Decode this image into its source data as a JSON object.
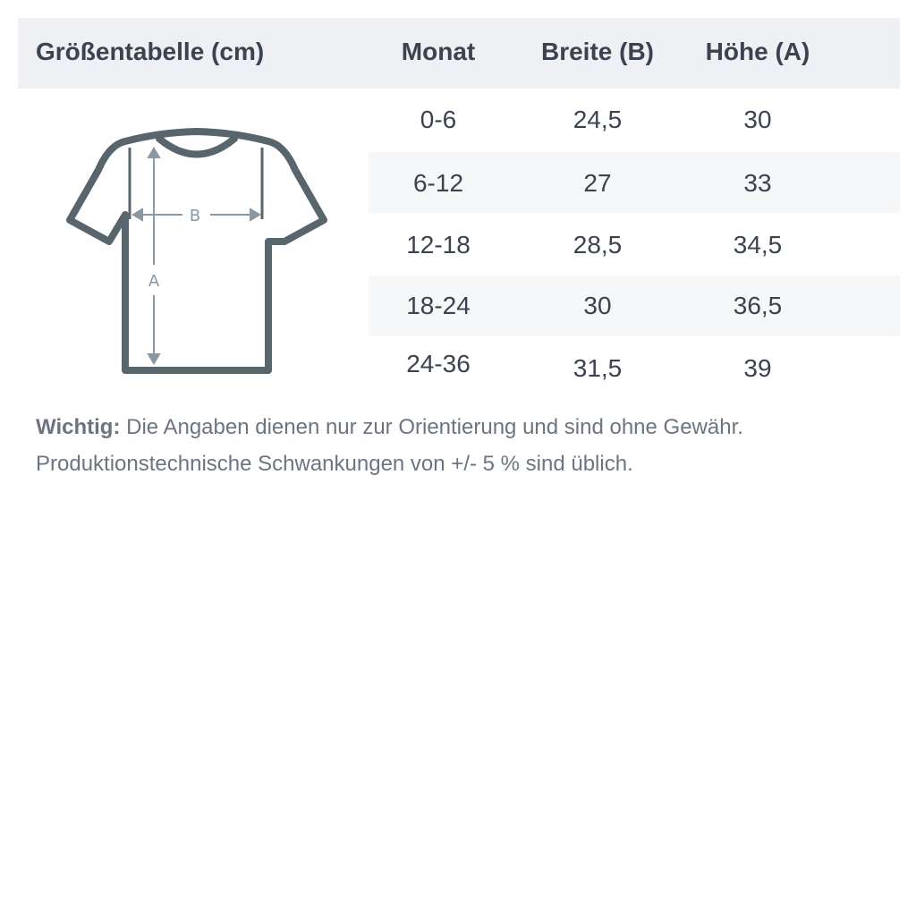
{
  "table": {
    "title": "Größentabelle (cm)",
    "columns": [
      "Monat",
      "Breite (B)",
      "Höhe (A)"
    ],
    "rows": [
      [
        "0-6",
        "24,5",
        "30"
      ],
      [
        "6-12",
        "27",
        "33"
      ],
      [
        "12-18",
        "28,5",
        "34,5"
      ],
      [
        "18-24",
        "30",
        "36,5"
      ],
      [
        "24-36",
        "31,5",
        "39"
      ]
    ]
  },
  "diagram": {
    "label_b": "B",
    "label_a": "A"
  },
  "note": {
    "bold": "Wichtig:",
    "line1": " Die Angaben dienen nur zur Orientierung und sind ohne Gewähr.",
    "line2": "Produktionstechnische Schwankungen von +/- 5 % sind üblich."
  },
  "colors": {
    "shirt": "#58656c",
    "arrows": "#8a98a4",
    "header_bg": "#eef0f3"
  }
}
